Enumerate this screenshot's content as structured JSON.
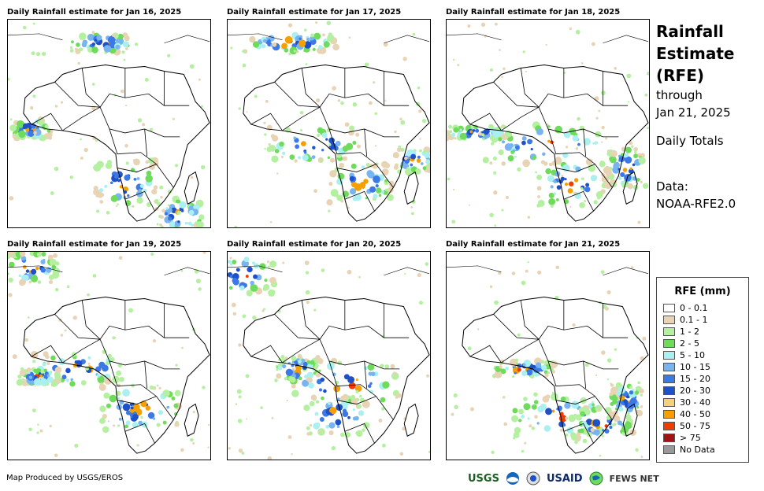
{
  "panels": [
    {
      "title": "Daily Rainfall estimate for Jan 16, 2025"
    },
    {
      "title": "Daily Rainfall estimate for Jan 17, 2025"
    },
    {
      "title": "Daily Rainfall estimate for Jan 18, 2025"
    },
    {
      "title": "Daily Rainfall estimate for Jan 19, 2025"
    },
    {
      "title": "Daily Rainfall estimate for Jan 20, 2025"
    },
    {
      "title": "Daily Rainfall estimate for Jan 21, 2025"
    }
  ],
  "side": {
    "title_line1": "Rainfall",
    "title_line2": "Estimate",
    "title_line3": "(RFE)",
    "through": "through",
    "date": "Jan 21, 2025",
    "totals": "Daily Totals",
    "data_label": "Data:",
    "data_source": "NOAA-RFE2.0"
  },
  "legend": {
    "title": "RFE (mm)",
    "items": [
      {
        "label": "0 - 0.1",
        "color": "#ffffff"
      },
      {
        "label": "0.1 - 1",
        "color": "#e8d3b4"
      },
      {
        "label": "1 - 2",
        "color": "#b4f0a0"
      },
      {
        "label": "2 - 5",
        "color": "#6edc5a"
      },
      {
        "label": "5 - 10",
        "color": "#aaf0f0"
      },
      {
        "label": "10 - 15",
        "color": "#78b4f0"
      },
      {
        "label": "15 - 20",
        "color": "#3c78e6"
      },
      {
        "label": "20 - 30",
        "color": "#1e50c8"
      },
      {
        "label": "30 - 40",
        "color": "#f5d278"
      },
      {
        "label": "40 - 50",
        "color": "#f5a000"
      },
      {
        "label": "50 - 75",
        "color": "#f03c00"
      },
      {
        "label": "> 75",
        "color": "#a01414"
      },
      {
        "label": "No Data",
        "color": "#999999"
      }
    ]
  },
  "credit": "Map Produced by USGS/EROS",
  "logos": {
    "usgs": "USGS",
    "usaid": "USAID",
    "fewsnet": "FEWS NET"
  }
}
